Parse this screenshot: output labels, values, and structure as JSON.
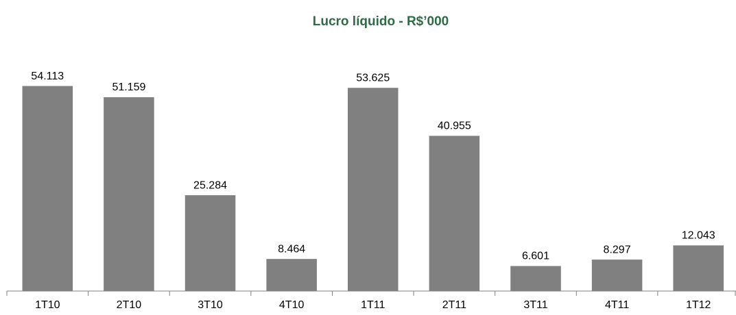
{
  "chart_data": {
    "type": "bar",
    "title": "Lucro líquido - R$’000",
    "categories": [
      "1T10",
      "2T10",
      "3T10",
      "4T10",
      "1T11",
      "2T11",
      "3T11",
      "4T11",
      "1T12"
    ],
    "values": [
      54113,
      51159,
      25284,
      8464,
      53625,
      40955,
      6601,
      8297,
      12043
    ],
    "value_labels": [
      "54.113",
      "51.159",
      "25.284",
      "8.464",
      "53.625",
      "40.955",
      "6.601",
      "8.297",
      "12.043"
    ],
    "color": "#808080",
    "ylim": [
      0,
      60000
    ]
  }
}
